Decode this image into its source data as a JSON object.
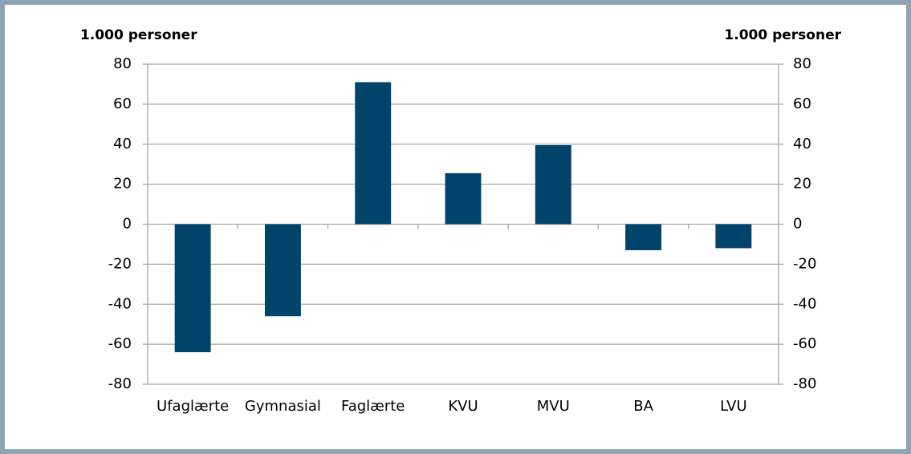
{
  "chart_data": {
    "type": "bar",
    "ylabel": "1.000 personer",
    "y2label": "1.000 personer",
    "categories": [
      "Ufaglærte",
      "Gymnasial",
      "Faglærte",
      "KVU",
      "MVU",
      "BA",
      "LVU"
    ],
    "values": [
      -64,
      -46,
      71,
      25.5,
      39.5,
      -13,
      -12
    ],
    "color": "#00436b",
    "ylim": [
      -80,
      80
    ],
    "yticks": [
      -80,
      -60,
      -40,
      -20,
      0,
      20,
      40,
      60,
      80
    ],
    "y2lim": [
      -80,
      80
    ],
    "y2ticks": [
      -80,
      -60,
      -40,
      -20,
      0,
      20,
      40,
      60,
      80
    ],
    "grid": true
  }
}
